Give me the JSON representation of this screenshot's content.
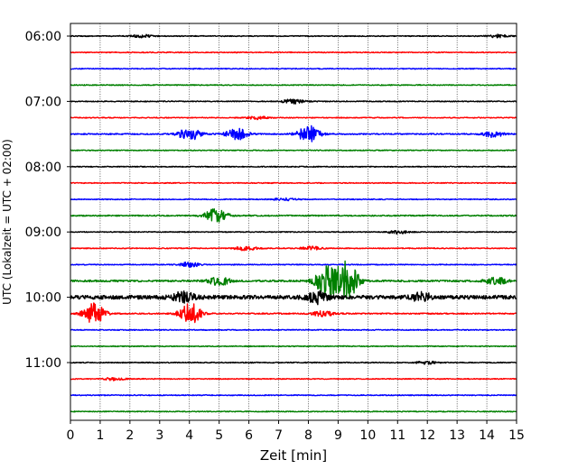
{
  "chart_data": {
    "type": "line",
    "title": "",
    "xlabel": "Zeit  [min]",
    "ylabel": "UTC (Lokalzeit = UTC + 02:00)",
    "xlim": [
      0,
      15
    ],
    "x_ticks": [
      "0",
      "1",
      "2",
      "3",
      "4",
      "5",
      "6",
      "7",
      "8",
      "9",
      "10",
      "11",
      "12",
      "13",
      "14",
      "15"
    ],
    "y_ticks": [
      "06:00",
      "07:00",
      "08:00",
      "09:00",
      "10:00",
      "11:00"
    ],
    "grid": "vertical-dotted",
    "trace_colors": [
      "#000000",
      "#ff0000",
      "#0000ff",
      "#008000"
    ],
    "traces_per_hour": 4,
    "traces": [
      {
        "label": "06:00",
        "color": "#000000",
        "amplitude": 0.3,
        "events": [
          {
            "t": 2.4,
            "amp": 1
          },
          {
            "t": 14.4,
            "amp": 1
          }
        ]
      },
      {
        "label": "06:15",
        "color": "#ff0000",
        "amplitude": 0.3,
        "events": []
      },
      {
        "label": "06:30",
        "color": "#0000ff",
        "amplitude": 0.3,
        "events": []
      },
      {
        "label": "06:45",
        "color": "#008000",
        "amplitude": 0.3,
        "events": []
      },
      {
        "label": "07:00",
        "color": "#000000",
        "amplitude": 0.3,
        "events": [
          {
            "t": 7.5,
            "amp": 1.6
          }
        ]
      },
      {
        "label": "07:15",
        "color": "#ff0000",
        "amplitude": 0.3,
        "events": [
          {
            "t": 6.3,
            "amp": 1
          }
        ]
      },
      {
        "label": "07:30",
        "color": "#0000ff",
        "amplitude": 0.4,
        "events": [
          {
            "t": 4.0,
            "amp": 4.5
          },
          {
            "t": 5.6,
            "amp": 4
          },
          {
            "t": 8.0,
            "amp": 6
          },
          {
            "t": 14.2,
            "amp": 2
          }
        ]
      },
      {
        "label": "07:45",
        "color": "#008000",
        "amplitude": 0.3,
        "events": []
      },
      {
        "label": "08:00",
        "color": "#000000",
        "amplitude": 0.3,
        "events": []
      },
      {
        "label": "08:15",
        "color": "#ff0000",
        "amplitude": 0.3,
        "events": []
      },
      {
        "label": "08:30",
        "color": "#0000ff",
        "amplitude": 0.3,
        "events": [
          {
            "t": 7.2,
            "amp": 1
          }
        ]
      },
      {
        "label": "08:45",
        "color": "#008000",
        "amplitude": 0.4,
        "events": [
          {
            "t": 4.9,
            "amp": 5
          }
        ]
      },
      {
        "label": "09:00",
        "color": "#000000",
        "amplitude": 0.3,
        "events": [
          {
            "t": 11.0,
            "amp": 1.2
          }
        ]
      },
      {
        "label": "09:15",
        "color": "#ff0000",
        "amplitude": 0.3,
        "events": [
          {
            "t": 5.9,
            "amp": 1.5
          },
          {
            "t": 8.1,
            "amp": 1.2
          }
        ]
      },
      {
        "label": "09:30",
        "color": "#0000ff",
        "amplitude": 0.3,
        "events": [
          {
            "t": 4.0,
            "amp": 1.6
          }
        ]
      },
      {
        "label": "09:45",
        "color": "#008000",
        "amplitude": 0.6,
        "events": [
          {
            "t": 5.0,
            "amp": 3
          },
          {
            "t": 8.6,
            "amp": 10
          },
          {
            "t": 9.3,
            "amp": 14
          },
          {
            "t": 14.3,
            "amp": 2.5
          }
        ]
      },
      {
        "label": "10:00",
        "color": "#000000",
        "amplitude": 1.3,
        "events": [
          {
            "t": 3.8,
            "amp": 4
          },
          {
            "t": 8.3,
            "amp": 4
          },
          {
            "t": 11.8,
            "amp": 3
          }
        ]
      },
      {
        "label": "10:15",
        "color": "#ff0000",
        "amplitude": 0.4,
        "events": [
          {
            "t": 0.8,
            "amp": 7
          },
          {
            "t": 4.0,
            "amp": 8
          },
          {
            "t": 8.5,
            "amp": 2
          }
        ]
      },
      {
        "label": "10:30",
        "color": "#0000ff",
        "amplitude": 0.3,
        "events": []
      },
      {
        "label": "10:45",
        "color": "#008000",
        "amplitude": 0.3,
        "events": []
      },
      {
        "label": "11:00",
        "color": "#000000",
        "amplitude": 0.3,
        "events": [
          {
            "t": 12.0,
            "amp": 1
          }
        ]
      },
      {
        "label": "11:15",
        "color": "#ff0000",
        "amplitude": 0.3,
        "events": [
          {
            "t": 1.5,
            "amp": 1
          }
        ]
      },
      {
        "label": "11:30",
        "color": "#0000ff",
        "amplitude": 0.3,
        "events": []
      },
      {
        "label": "11:45",
        "color": "#008000",
        "amplitude": 0.3,
        "events": []
      }
    ]
  }
}
